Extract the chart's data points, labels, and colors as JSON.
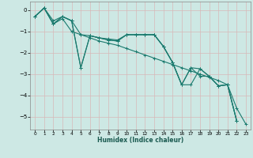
{
  "title": "",
  "xlabel": "Humidex (Indice chaleur)",
  "ylabel": "",
  "background_color": "#cde8e4",
  "grid_color": "#b8d8d2",
  "line_color": "#1a7a6e",
  "xlim": [
    -0.5,
    23.5
  ],
  "ylim": [
    -5.6,
    0.4
  ],
  "yticks": [
    0,
    -1,
    -2,
    -3,
    -4,
    -5
  ],
  "xticks": [
    0,
    1,
    2,
    3,
    4,
    5,
    6,
    7,
    8,
    9,
    10,
    11,
    12,
    13,
    14,
    15,
    16,
    17,
    18,
    19,
    20,
    21,
    22,
    23
  ],
  "series": [
    {
      "x": [
        0,
        1,
        2,
        3,
        4,
        5,
        6,
        7,
        8,
        9,
        10,
        11,
        12,
        13,
        14,
        15,
        16,
        17,
        18,
        19,
        20,
        21,
        22
      ],
      "y": [
        -0.3,
        0.1,
        -0.5,
        -0.3,
        -0.5,
        -1.15,
        -1.2,
        -1.3,
        -1.35,
        -1.4,
        -1.15,
        -1.15,
        -1.15,
        -1.15,
        -1.7,
        -2.45,
        -3.5,
        -2.7,
        -3.1,
        -3.1,
        -3.55,
        -3.5,
        -5.2
      ]
    },
    {
      "x": [
        0,
        1,
        2,
        3,
        4,
        5,
        6,
        7,
        8,
        9,
        10,
        11,
        12,
        13,
        14,
        15,
        16,
        17,
        18,
        19,
        20,
        21,
        22
      ],
      "y": [
        -0.3,
        0.1,
        -0.65,
        -0.3,
        -0.5,
        -2.7,
        -1.2,
        -1.3,
        -1.4,
        -1.45,
        -1.15,
        -1.15,
        -1.15,
        -1.15,
        -1.7,
        -2.45,
        -3.5,
        -2.7,
        -2.75,
        -3.1,
        -3.55,
        -3.5,
        -5.2
      ]
    },
    {
      "x": [
        0,
        1,
        2,
        3,
        4,
        5,
        6,
        7,
        8,
        9,
        10,
        11,
        12,
        13,
        14,
        15,
        16,
        17,
        18,
        19,
        20,
        21,
        22
      ],
      "y": [
        -0.3,
        0.1,
        -0.65,
        -0.3,
        -0.5,
        -2.7,
        -1.2,
        -1.3,
        -1.4,
        -1.45,
        -1.15,
        -1.15,
        -1.15,
        -1.15,
        -1.7,
        -2.45,
        -3.5,
        -3.5,
        -2.75,
        -3.1,
        -3.55,
        -3.5,
        -5.2
      ]
    },
    {
      "x": [
        0,
        1,
        2,
        3,
        4,
        5,
        6,
        7,
        8,
        9,
        10,
        11,
        12,
        13,
        14,
        15,
        16,
        17,
        18,
        19,
        20,
        21,
        22,
        23
      ],
      "y": [
        -0.3,
        0.1,
        -0.65,
        -0.4,
        -1.0,
        -1.15,
        -1.3,
        -1.45,
        -1.55,
        -1.65,
        -1.8,
        -1.95,
        -2.1,
        -2.25,
        -2.4,
        -2.55,
        -2.7,
        -2.85,
        -3.0,
        -3.15,
        -3.3,
        -3.5,
        -4.6,
        -5.35
      ]
    }
  ]
}
